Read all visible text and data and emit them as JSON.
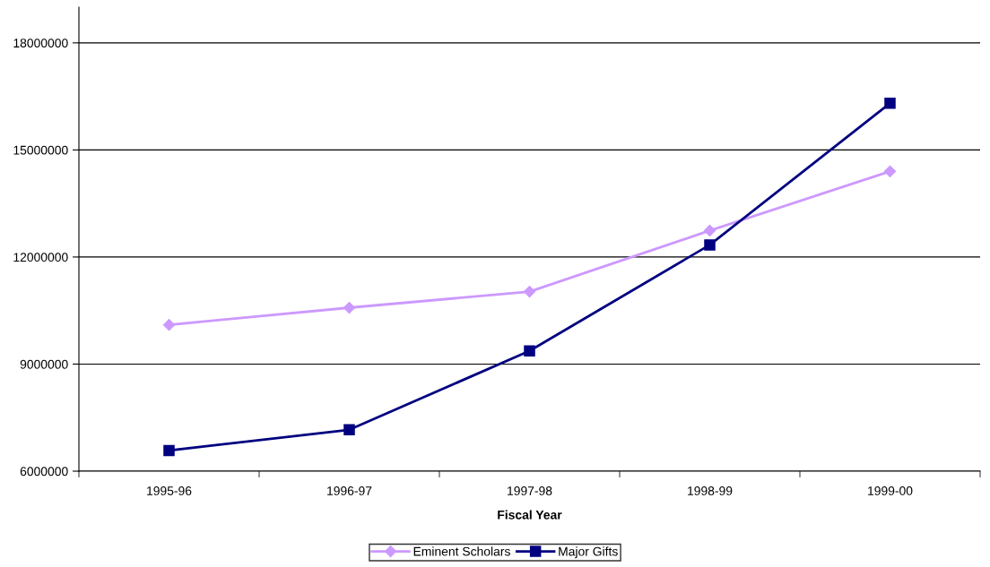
{
  "chart_data": {
    "type": "line",
    "xlabel": "Fiscal Year",
    "categories": [
      "1995-96",
      "1996-97",
      "1997-98",
      "1998-99",
      "1999-00"
    ],
    "series": [
      {
        "name": "Eminent Scholars",
        "color": "#cc99ff",
        "marker": "diamond",
        "values": [
          10100000,
          10580000,
          11030000,
          12740000,
          14400000
        ]
      },
      {
        "name": "Major Gifts",
        "color": "#000080",
        "marker": "square",
        "values": [
          6580000,
          7160000,
          9370000,
          12340000,
          16310000
        ]
      }
    ],
    "ylim": [
      6000000,
      19000000
    ],
    "yticks": [
      6000000,
      9000000,
      12000000,
      15000000,
      18000000
    ],
    "grid": "y",
    "legend": "bottom",
    "line_style": "solid"
  }
}
